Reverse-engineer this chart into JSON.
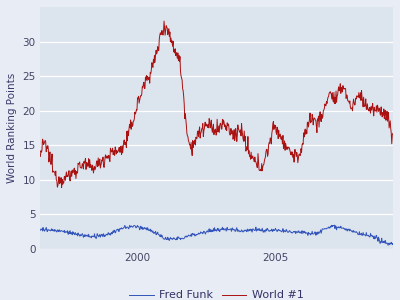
{
  "title": "",
  "ylabel": "World Ranking Points",
  "xlabel": "",
  "plot_bg_color": "#dce4ee",
  "fig_bg_color": "#e8edf5",
  "fred_funk_color": "#3355bb",
  "world1_color": "#aa1111",
  "ylim": [
    0,
    35
  ],
  "yticks": [
    0,
    5,
    10,
    15,
    20,
    25,
    30
  ],
  "xtick_years": [
    2000,
    2005
  ],
  "legend_labels": [
    "Fred Funk",
    "World #1"
  ],
  "figsize": [
    4.0,
    3.0
  ],
  "dpi": 100,
  "line_width": 0.7
}
